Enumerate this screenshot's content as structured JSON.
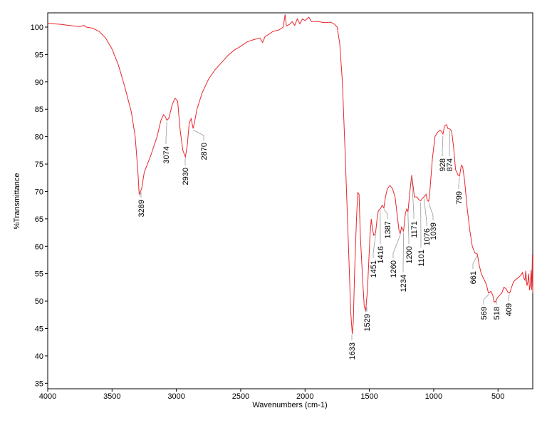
{
  "chart_data": {
    "type": "line",
    "xlabel": "Wavenumbers (cm-1)",
    "ylabel": "%Transmittance",
    "color": "#e8262b",
    "xlim": [
      4000,
      230
    ],
    "ylim": [
      34,
      102.6
    ],
    "xticks": [
      4000,
      3500,
      3000,
      2500,
      2000,
      1500,
      1000,
      500
    ],
    "yticks": [
      35,
      40,
      45,
      50,
      55,
      60,
      65,
      70,
      75,
      80,
      85,
      90,
      95,
      100
    ],
    "x": [
      4000,
      3900,
      3800,
      3750,
      3720,
      3700,
      3650,
      3600,
      3550,
      3500,
      3450,
      3400,
      3350,
      3320,
      3300,
      3289,
      3270,
      3250,
      3200,
      3150,
      3120,
      3100,
      3090,
      3074,
      3060,
      3030,
      3010,
      2990,
      2970,
      2950,
      2930,
      2915,
      2900,
      2885,
      2870,
      2860,
      2840,
      2800,
      2750,
      2700,
      2650,
      2600,
      2550,
      2500,
      2450,
      2400,
      2350,
      2330,
      2310,
      2280,
      2250,
      2200,
      2170,
      2155,
      2145,
      2120,
      2100,
      2080,
      2060,
      2040,
      2020,
      2000,
      1970,
      1950,
      1900,
      1850,
      1800,
      1770,
      1750,
      1730,
      1710,
      1690,
      1670,
      1655,
      1645,
      1633,
      1625,
      1615,
      1600,
      1590,
      1580,
      1570,
      1555,
      1540,
      1529,
      1515,
      1505,
      1495,
      1485,
      1475,
      1465,
      1451,
      1440,
      1430,
      1416,
      1400,
      1387,
      1375,
      1360,
      1340,
      1320,
      1300,
      1280,
      1270,
      1260,
      1250,
      1240,
      1234,
      1220,
      1210,
      1200,
      1185,
      1171,
      1160,
      1150,
      1130,
      1115,
      1101,
      1090,
      1076,
      1060,
      1050,
      1039,
      1030,
      1010,
      990,
      970,
      950,
      940,
      928,
      915,
      900,
      890,
      874,
      860,
      845,
      830,
      810,
      799,
      785,
      775,
      760,
      740,
      720,
      700,
      680,
      661,
      645,
      630,
      610,
      590,
      575,
      569,
      555,
      540,
      530,
      518,
      505,
      490,
      470,
      455,
      440,
      420,
      409,
      395,
      380,
      360,
      340,
      320,
      310,
      300,
      290,
      285,
      275,
      268,
      262,
      255,
      248,
      243,
      238,
      233,
      230
    ],
    "values": [
      100.7,
      100.5,
      100.2,
      100.1,
      100.3,
      100.0,
      99.8,
      99.2,
      98.0,
      96.0,
      93.0,
      89.0,
      84.5,
      80.0,
      74.0,
      69.5,
      70.5,
      73.5,
      76.5,
      80.0,
      83.0,
      84.0,
      83.8,
      83.0,
      83.3,
      86.0,
      87.0,
      86.5,
      81.0,
      77.5,
      76.3,
      78.5,
      82.5,
      83.3,
      81.5,
      82.5,
      85.0,
      88.0,
      90.5,
      92.2,
      93.5,
      94.8,
      95.8,
      96.5,
      97.3,
      97.7,
      98.0,
      97.2,
      98.3,
      98.7,
      99.2,
      99.5,
      100.0,
      102.3,
      100.2,
      100.5,
      101.0,
      100.3,
      101.5,
      100.6,
      101.5,
      101.2,
      101.8,
      101.0,
      101.0,
      100.8,
      100.9,
      100.5,
      100.0,
      97.0,
      90.0,
      78.0,
      65.0,
      55.0,
      48.0,
      44.0,
      46.0,
      55.0,
      65.0,
      69.8,
      69.5,
      62.0,
      55.0,
      49.0,
      48.2,
      52.0,
      57.0,
      62.0,
      65.0,
      63.0,
      62.0,
      62.5,
      65.0,
      66.5,
      66.8,
      67.5,
      67.0,
      69.0,
      70.5,
      71.1,
      70.5,
      69.0,
      65.0,
      63.0,
      62.3,
      63.5,
      63.0,
      62.8,
      66.0,
      66.8,
      66.3,
      70.0,
      73.0,
      71.0,
      69.0,
      69.0,
      68.5,
      68.3,
      68.7,
      69.0,
      69.5,
      68.4,
      68.2,
      70.0,
      76.0,
      80.0,
      80.8,
      81.2,
      81.0,
      80.5,
      82.0,
      82.2,
      81.5,
      81.4,
      81.0,
      78.0,
      74.0,
      73.0,
      72.8,
      74.8,
      74.5,
      72.0,
      67.0,
      63.0,
      60.0,
      58.8,
      58.6,
      56.5,
      55.0,
      54.0,
      53.0,
      51.5,
      51.5,
      51.8,
      51.0,
      49.8,
      50.0,
      50.6,
      51.0,
      51.5,
      52.5,
      52.3,
      51.5,
      51.5,
      52.5,
      53.5,
      54.0,
      54.3,
      54.8,
      55.2,
      54.2,
      53.8,
      55.5,
      52.8,
      53.5,
      55.0,
      52.0,
      53.0,
      55.7,
      52.0,
      58.5,
      51.5
    ],
    "annotations": [
      {
        "x": 3289,
        "y": 69.5
      },
      {
        "x": 3074,
        "y": 83.0
      },
      {
        "x": 2930,
        "y": 76.3
      },
      {
        "x": 2870,
        "y": 81.5
      },
      {
        "x": 1633,
        "y": 44.0
      },
      {
        "x": 1529,
        "y": 48.2
      },
      {
        "x": 1451,
        "y": 62.5
      },
      {
        "x": 1416,
        "y": 66.8
      },
      {
        "x": 1387,
        "y": 67.0
      },
      {
        "x": 1260,
        "y": 62.3
      },
      {
        "x": 1234,
        "y": 62.8
      },
      {
        "x": 1200,
        "y": 66.3
      },
      {
        "x": 1171,
        "y": 73.0
      },
      {
        "x": 1101,
        "y": 68.3
      },
      {
        "x": 1076,
        "y": 69.0
      },
      {
        "x": 1039,
        "y": 68.2
      },
      {
        "x": 928,
        "y": 80.5
      },
      {
        "x": 874,
        "y": 81.4
      },
      {
        "x": 799,
        "y": 72.8
      },
      {
        "x": 661,
        "y": 58.6
      },
      {
        "x": 569,
        "y": 51.5
      },
      {
        "x": 518,
        "y": 50.0
      },
      {
        "x": 409,
        "y": 51.5
      }
    ]
  }
}
